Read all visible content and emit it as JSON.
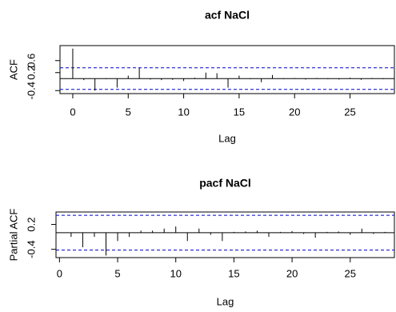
{
  "chart_data": [
    {
      "type": "bar",
      "title": "acf NaCl",
      "x_label": "Lag",
      "y_label": "ACF",
      "x": [
        0,
        1,
        2,
        3,
        4,
        5,
        6,
        7,
        8,
        9,
        10,
        11,
        12,
        13,
        14,
        15,
        16,
        17,
        18,
        19,
        20,
        21,
        22,
        23,
        24,
        25,
        26,
        27,
        28
      ],
      "values": [
        1.0,
        -0.05,
        -0.4,
        -0.02,
        -0.3,
        0.1,
        0.35,
        -0.03,
        -0.05,
        -0.04,
        -0.08,
        0.03,
        0.2,
        0.18,
        -0.3,
        0.1,
        -0.02,
        -0.12,
        0.12,
        -0.02,
        0.02,
        -0.03,
        0.02,
        -0.02,
        -0.03,
        0.03,
        -0.04,
        0.02,
        -0.02
      ],
      "color": "#000000",
      "ci_lines": [
        0.36,
        -0.36
      ],
      "ci_color": "#0000cc",
      "xlim": [
        -1.15,
        29
      ],
      "ylim": [
        -0.5,
        1.1
      ],
      "xticks": [
        0,
        5,
        10,
        15,
        20,
        25
      ],
      "yticks": [
        -0.4,
        0.2,
        0.6
      ]
    },
    {
      "type": "bar",
      "title": "pacf NaCl",
      "x_label": "Lag",
      "y_label": "Partial ACF",
      "x": [
        1,
        2,
        3,
        4,
        5,
        6,
        7,
        8,
        9,
        10,
        11,
        12,
        13,
        14,
        15,
        16,
        17,
        18,
        19,
        20,
        21,
        22,
        23,
        24,
        25,
        26,
        27,
        28
      ],
      "values": [
        -0.1,
        -0.35,
        -0.1,
        -0.55,
        -0.2,
        -0.1,
        0.05,
        0.05,
        0.1,
        0.15,
        -0.2,
        0.1,
        -0.05,
        -0.2,
        0.02,
        0.03,
        0.05,
        -0.1,
        0.02,
        0.04,
        -0.03,
        -0.12,
        0.02,
        0.03,
        -0.05,
        0.1,
        -0.03,
        0.02
      ],
      "color": "#000000",
      "ci_lines": [
        0.42,
        -0.42
      ],
      "ci_color": "#0000cc",
      "xlim": [
        -0.3,
        28.8
      ],
      "ylim": [
        -0.6,
        0.5
      ],
      "xticks": [
        0,
        5,
        10,
        15,
        20,
        25
      ],
      "yticks": [
        -0.4,
        0.2
      ]
    }
  ]
}
